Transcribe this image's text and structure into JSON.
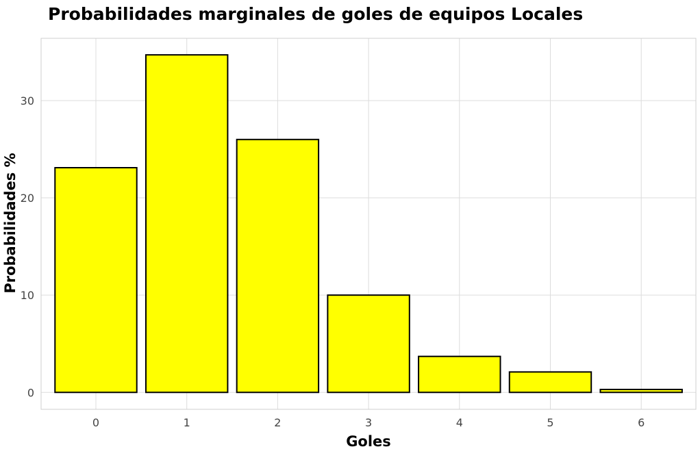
{
  "chart_data": {
    "type": "bar",
    "title": "Probabilidades marginales de goles de equipos Locales",
    "xlabel": "Goles",
    "ylabel": "Probabilidades %",
    "categories": [
      "0",
      "1",
      "2",
      "3",
      "4",
      "5",
      "6"
    ],
    "values": [
      23.1,
      34.7,
      26.0,
      10.0,
      3.7,
      2.1,
      0.3
    ],
    "yticks": [
      0,
      10,
      20,
      30
    ],
    "ylim": [
      -1.74,
      36.4
    ],
    "grid": true,
    "legend": "none",
    "bar_color": "#ffff00",
    "bar_outline": "#000000"
  }
}
